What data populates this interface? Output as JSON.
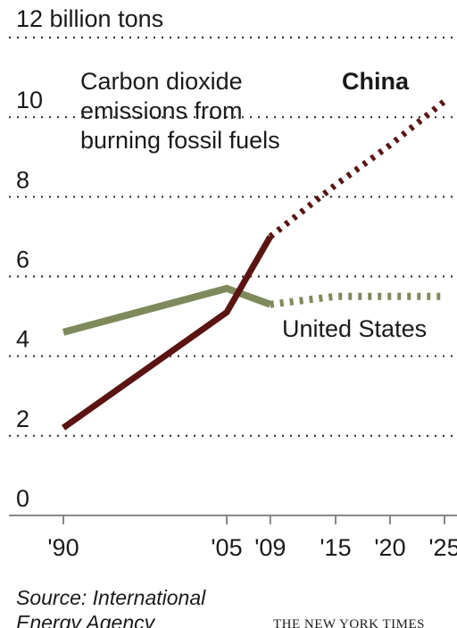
{
  "chart_data": {
    "type": "line",
    "title": "",
    "ylabel": "",
    "xlabel": "",
    "note": [
      "Carbon dioxide",
      "emissions from",
      "burning fossil fuels"
    ],
    "ylim": [
      0,
      12
    ],
    "yticks": [
      0,
      2,
      4,
      6,
      8,
      10,
      12
    ],
    "ytick_labels": [
      "0",
      "2",
      "4",
      "6",
      "8",
      "10",
      "12 billion tons"
    ],
    "xticks": [
      1990,
      2005,
      2009,
      2015,
      2020,
      2025
    ],
    "xtick_labels": [
      "'90",
      "'05",
      "'09",
      "'15",
      "'20",
      "'25"
    ],
    "grid": "horizontal dotted",
    "series": [
      {
        "name": "China",
        "color": "#5a1412",
        "actual": [
          [
            1990,
            2.2
          ],
          [
            2005,
            5.1
          ],
          [
            2009,
            7.0
          ]
        ],
        "projected": [
          [
            2009,
            7.0
          ],
          [
            2015,
            8.3
          ],
          [
            2020,
            9.3
          ],
          [
            2025,
            10.4
          ]
        ]
      },
      {
        "name": "United States",
        "color": "#7f8a5c",
        "actual": [
          [
            1990,
            4.6
          ],
          [
            2005,
            5.7
          ],
          [
            2009,
            5.3
          ]
        ],
        "projected": [
          [
            2009,
            5.3
          ],
          [
            2015,
            5.5
          ],
          [
            2020,
            5.5
          ],
          [
            2025,
            5.5
          ]
        ]
      }
    ]
  },
  "footer": {
    "source": [
      "Source: International",
      "Energy Agency"
    ],
    "credit": "THE NEW YORK TIMES"
  }
}
